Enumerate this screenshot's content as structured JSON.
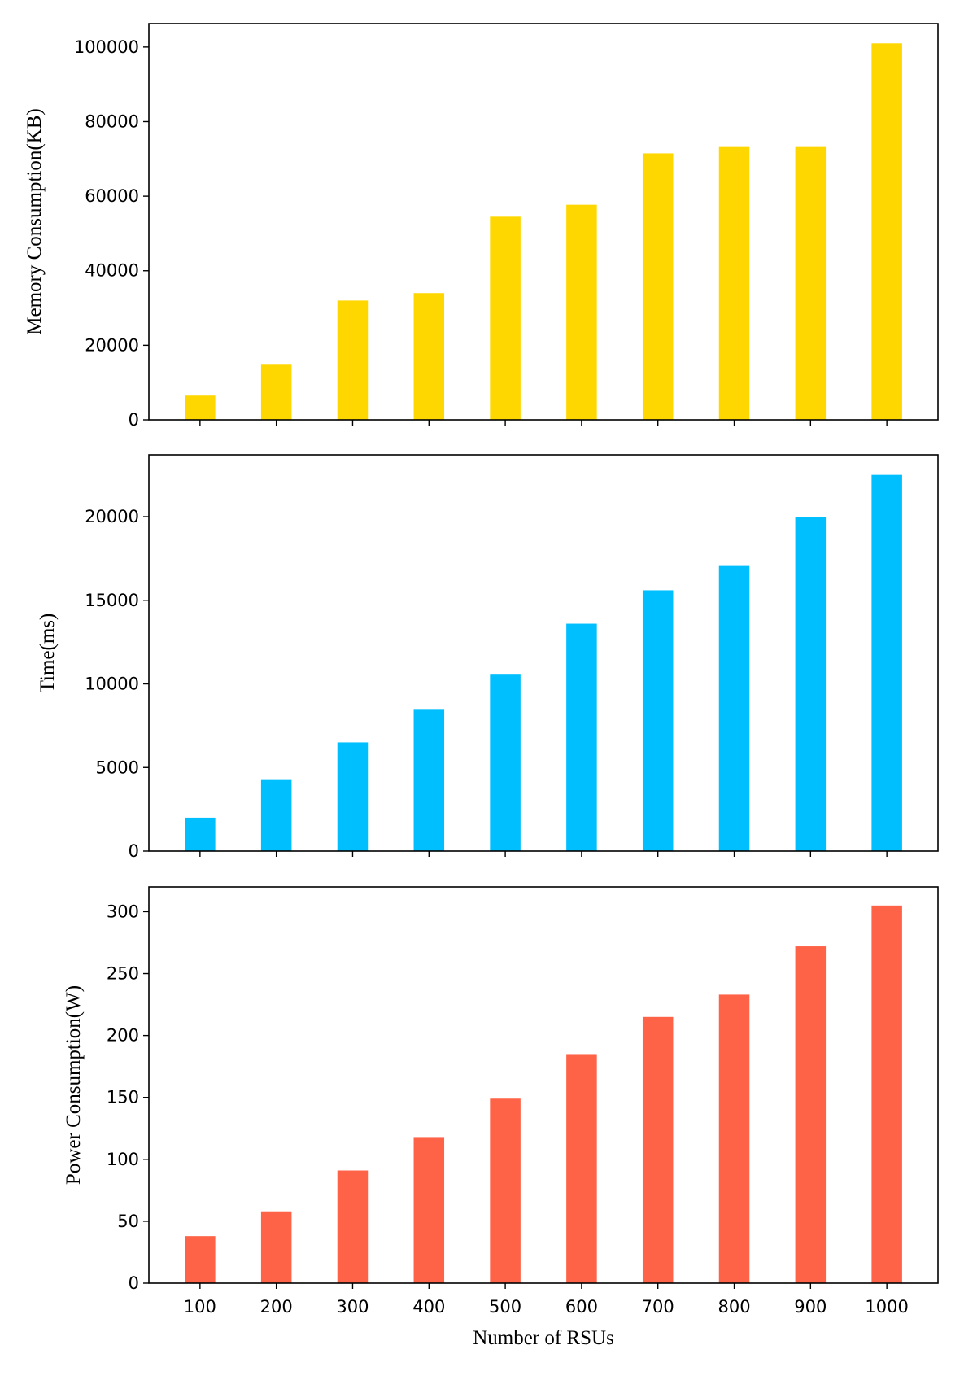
{
  "chart_data": [
    {
      "type": "bar",
      "categories": [
        "100",
        "200",
        "300",
        "400",
        "500",
        "600",
        "700",
        "800",
        "900",
        "1000"
      ],
      "values": [
        6500,
        15000,
        32000,
        34000,
        54500,
        57700,
        71500,
        73200,
        73200,
        101000
      ],
      "ylabel": "Memory Consumption(KB)",
      "xlabel": "",
      "ylim": [
        0,
        106300
      ],
      "yticks": [
        0,
        20000,
        40000,
        60000,
        80000,
        100000
      ],
      "color": "#FFD700",
      "show_xticklabels": false,
      "grid": false
    },
    {
      "type": "bar",
      "categories": [
        "100",
        "200",
        "300",
        "400",
        "500",
        "600",
        "700",
        "800",
        "900",
        "1000"
      ],
      "values": [
        2000,
        4300,
        6500,
        8500,
        10600,
        13600,
        15600,
        17100,
        20000,
        22500
      ],
      "ylabel": "Time(ms)",
      "xlabel": "",
      "ylim": [
        0,
        23700
      ],
      "yticks": [
        0,
        5000,
        10000,
        15000,
        20000
      ],
      "color": "#00BFFF",
      "show_xticklabels": false,
      "grid": false
    },
    {
      "type": "bar",
      "categories": [
        "100",
        "200",
        "300",
        "400",
        "500",
        "600",
        "700",
        "800",
        "900",
        "1000"
      ],
      "values": [
        38,
        58,
        91,
        118,
        149,
        185,
        215,
        233,
        272,
        305
      ],
      "ylabel": "Power Consumption(W)",
      "xlabel": "Number of RSUs",
      "ylim": [
        0,
        320
      ],
      "yticks": [
        0,
        50,
        100,
        150,
        200,
        250,
        300
      ],
      "color": "#FF6347",
      "show_xticklabels": true,
      "grid": false
    }
  ]
}
